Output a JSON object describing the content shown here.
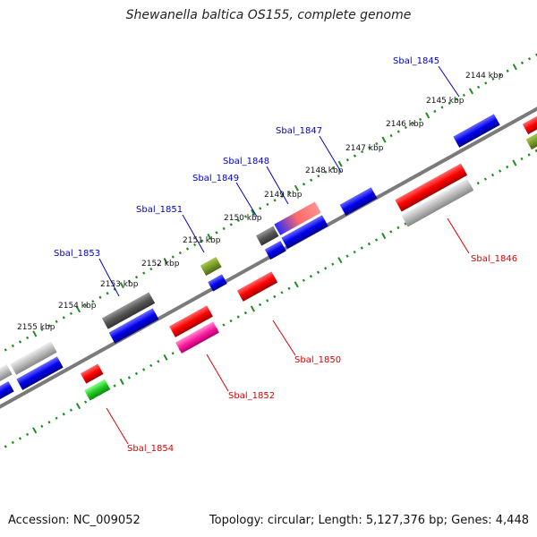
{
  "title": "Shewanella baltica OS155, complete genome",
  "footer": {
    "accession": "Accession: NC_009052",
    "summary": "Topology: circular; Length: 5,127,376 bp; Genes: 4,448"
  },
  "colors": {
    "forward_label": "#0000cc",
    "reverse_label": "#dd0000",
    "axis": "#808080",
    "ruler": "#228b22"
  },
  "ruler_labels": [
    "2144 kbp",
    "2145 kbp",
    "2146 kbp",
    "2147 kbp",
    "2148 kbp",
    "2149 kbp",
    "2150 kbp",
    "2151 kbp",
    "2152 kbp",
    "2153 kbp",
    "2154 kbp",
    "2155 kbp"
  ],
  "gene_labels": [
    {
      "name": "Sbal_1845",
      "strand": "forward"
    },
    {
      "name": "Sbal_1847",
      "strand": "forward"
    },
    {
      "name": "Sbal_1848",
      "strand": "forward"
    },
    {
      "name": "Sbal_1849",
      "strand": "forward"
    },
    {
      "name": "Sbal_1851",
      "strand": "forward"
    },
    {
      "name": "Sbal_1853",
      "strand": "forward"
    },
    {
      "name": "Sbal_1846",
      "strand": "reverse"
    },
    {
      "name": "Sbal_1850",
      "strand": "reverse"
    },
    {
      "name": "Sbal_1852",
      "strand": "reverse"
    },
    {
      "name": "Sbal_1854",
      "strand": "reverse"
    }
  ]
}
